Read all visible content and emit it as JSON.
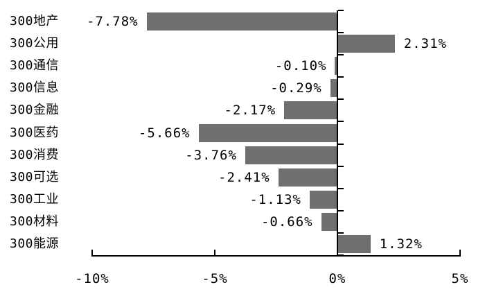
{
  "chart_data": {
    "type": "bar",
    "orientation": "horizontal",
    "title": "",
    "xlabel": "",
    "ylabel": "",
    "categories": [
      "300地产",
      "300公用",
      "300通信",
      "300信息",
      "300金融",
      "300医药",
      "300消费",
      "300可选",
      "300工业",
      "300材料",
      "300能源"
    ],
    "values": [
      -7.78,
      2.31,
      -0.1,
      -0.29,
      -2.17,
      -5.66,
      -3.76,
      -2.41,
      -1.13,
      -0.66,
      1.32
    ],
    "value_labels": [
      "-7.78%",
      "2.31%",
      "-0.10%",
      "-0.29%",
      "-2.17%",
      "-5.66%",
      "-3.76%",
      "-2.41%",
      "-1.13%",
      "-0.66%",
      "1.32%"
    ],
    "x_axis": {
      "range": [
        -10,
        5
      ],
      "tick_values": [
        -10,
        -5,
        0,
        5
      ],
      "ticks": [
        "-10%",
        "-5%",
        "0%",
        "5%"
      ]
    },
    "legend": "none",
    "grid": false,
    "colors": {
      "bar": "#6F6F6F",
      "axis": "#000000",
      "text": "#000000",
      "background": "#FFFFFF"
    }
  }
}
